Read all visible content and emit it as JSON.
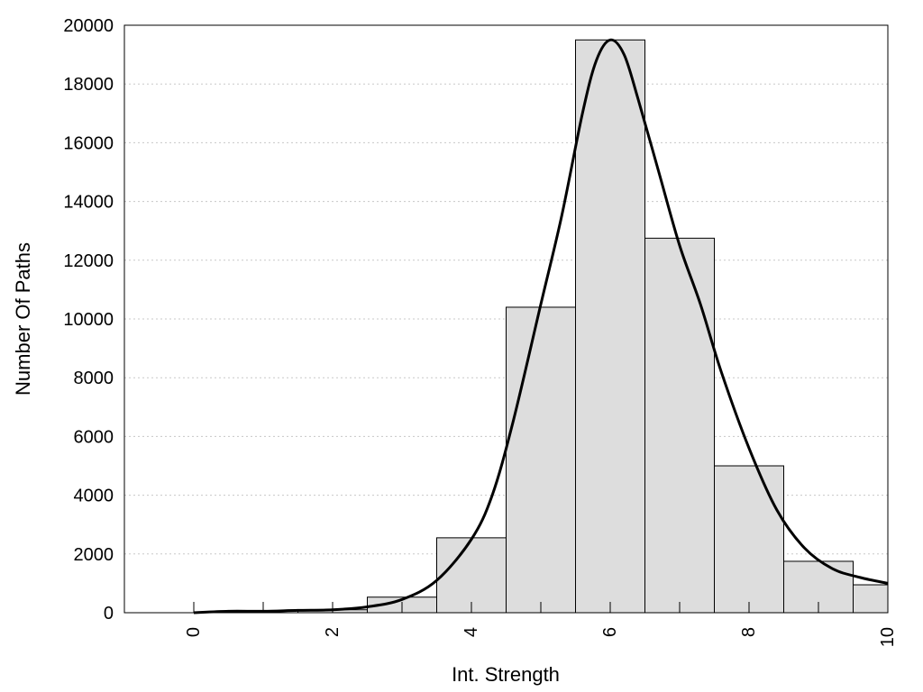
{
  "chart_data": {
    "type": "bar",
    "title": "",
    "xlabel": "Int. Strength",
    "ylabel": "Number Of Paths",
    "xlim": [
      -1,
      10
    ],
    "ylim": [
      0,
      20000
    ],
    "x_ticks": [
      0,
      2,
      4,
      6,
      8,
      10
    ],
    "y_ticks": [
      0,
      2000,
      4000,
      6000,
      8000,
      10000,
      12000,
      14000,
      16000,
      18000,
      20000
    ],
    "grid": "y-dotted",
    "bar_color": "#dddddd",
    "bar_edge_color": "#000000",
    "curve_color": "#000000",
    "bars": [
      {
        "x": 0,
        "value": 0
      },
      {
        "x": 1,
        "value": 0
      },
      {
        "x": 2,
        "value": 100
      },
      {
        "x": 3,
        "value": 530
      },
      {
        "x": 4,
        "value": 2550
      },
      {
        "x": 5,
        "value": 10400
      },
      {
        "x": 6,
        "value": 19500
      },
      {
        "x": 7,
        "value": 12750
      },
      {
        "x": 8,
        "value": 5000
      },
      {
        "x": 9,
        "value": 1750
      },
      {
        "x": 9.75,
        "value": 950,
        "width": 0.5
      }
    ],
    "curve": {
      "type": "line",
      "x": [
        0,
        0.5,
        1,
        1.5,
        2,
        2.5,
        3,
        3.5,
        4,
        4.3,
        4.6,
        5,
        5.3,
        5.6,
        5.8,
        6,
        6.2,
        6.4,
        6.7,
        7,
        7.3,
        7.6,
        8,
        8.4,
        8.8,
        9.2,
        9.6,
        10
      ],
      "y": [
        0,
        50,
        50,
        80,
        100,
        200,
        450,
        1100,
        2500,
        4000,
        6500,
        10500,
        13500,
        17000,
        18800,
        19500,
        19000,
        17500,
        15000,
        12500,
        10500,
        8200,
        5600,
        3500,
        2200,
        1500,
        1200,
        1000
      ]
    }
  }
}
